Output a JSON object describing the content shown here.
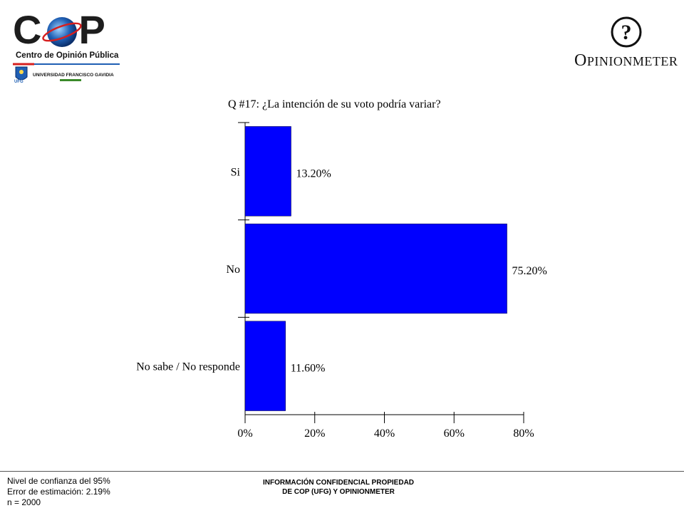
{
  "header": {
    "cop_logo_text": "COP",
    "cop_subtitle": "Centro de Opinión Pública",
    "ufg_text": "UNIVERSIDAD FRANCISCO GAVIDIA",
    "ufg_seal_text": "UFG",
    "om_logo_first": "O",
    "om_logo_rest": "PINIONMETER"
  },
  "colors": {
    "bar": "#0000ff",
    "bar_stroke": "#000033",
    "cop_red": "#d62020",
    "cop_blue": "#1f5fb4",
    "ufg_green": "#3a8a2a"
  },
  "chart_data": {
    "type": "bar",
    "orientation": "horizontal",
    "title": "Q #17: ¿La intención de su voto podría variar?",
    "categories": [
      "Si",
      "No",
      "No sabe / No responde"
    ],
    "values": [
      13.2,
      75.2,
      11.6
    ],
    "data_labels": [
      "13.20%",
      "75.20%",
      "11.60%"
    ],
    "x_ticks": [
      0,
      20,
      40,
      60,
      80
    ],
    "x_tick_labels": [
      "0%",
      "20%",
      "40%",
      "60%",
      "80%"
    ],
    "xlim": [
      0,
      80
    ],
    "xlabel": "",
    "ylabel": "",
    "grid": false
  },
  "footer": {
    "confidence": "Nivel de confianza del 95%",
    "error": "Error de estimación: 2.19%",
    "n": "n = 2000",
    "confidential_line1": "INFORMACIÓN CONFIDENCIAL PROPIEDAD",
    "confidential_line2": "DE COP (UFG) Y OPINIONMETER"
  }
}
